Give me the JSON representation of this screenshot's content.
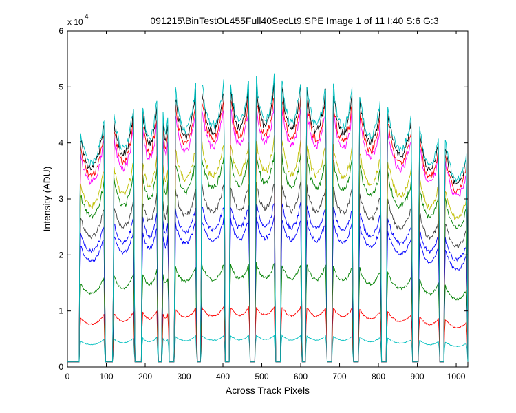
{
  "chart_data": {
    "type": "line",
    "title": "091215\\BinTestOL455Full40SecLt9.SPE  Image 1 of 11  I:40  S:6  G:3",
    "xlabel": "Across Track Pixels",
    "ylabel": "Intensity (ADU)",
    "y_multiplier": {
      "base": "x 10",
      "exponent": "4"
    },
    "xlim": [
      0,
      1030
    ],
    "ylim": [
      0,
      6
    ],
    "x_ticks": [
      0,
      100,
      200,
      300,
      400,
      500,
      600,
      700,
      800,
      900,
      1000
    ],
    "x_tick_labels": [
      "0",
      "100",
      "200",
      "300",
      "400",
      "500",
      "600",
      "700",
      "800",
      "900",
      "1000"
    ],
    "y_ticks": [
      0,
      1,
      2,
      3,
      4,
      5,
      6
    ],
    "y_tick_labels": [
      "0",
      "1",
      "2",
      "3",
      "4",
      "5",
      "6"
    ],
    "grid": false,
    "baseline": 0.09,
    "segments": [
      {
        "start": 30,
        "end": 97
      },
      {
        "start": 117,
        "end": 173
      },
      {
        "start": 190,
        "end": 233
      },
      {
        "start": 243,
        "end": 262
      },
      {
        "start": 275,
        "end": 333
      },
      {
        "start": 343,
        "end": 406
      },
      {
        "start": 416,
        "end": 470
      },
      {
        "start": 482,
        "end": 535
      },
      {
        "start": 548,
        "end": 603
      },
      {
        "start": 612,
        "end": 668
      },
      {
        "start": 680,
        "end": 735
      },
      {
        "start": 748,
        "end": 808
      },
      {
        "start": 820,
        "end": 888
      },
      {
        "start": 902,
        "end": 958
      },
      {
        "start": 968,
        "end": 1030
      }
    ],
    "series": [
      {
        "color": "#00bfbf",
        "scale": 0.11
      },
      {
        "color": "#ff0000",
        "scale": 0.21
      },
      {
        "color": "#008000",
        "scale": 0.36
      },
      {
        "color": "#0000ff",
        "scale": 0.52
      },
      {
        "color": "#0000ff",
        "scale": 0.57
      },
      {
        "color": "#404040",
        "scale": 0.64
      },
      {
        "color": "#008000",
        "scale": 0.74
      },
      {
        "color": "#bfbf00",
        "scale": 0.79
      },
      {
        "color": "#ff00ff",
        "scale": 0.91
      },
      {
        "color": "#ff0000",
        "scale": 0.94
      },
      {
        "color": "#000000",
        "scale": 0.975
      },
      {
        "color": "#00bfbf",
        "scale": 1.0
      }
    ],
    "peak_envelope_x": [
      30,
      100,
      200,
      300,
      400,
      500,
      600,
      700,
      800,
      900,
      1030
    ],
    "peak_envelope_y": [
      4.3,
      4.6,
      4.95,
      5.15,
      5.3,
      5.4,
      5.3,
      5.25,
      4.95,
      4.55,
      3.95
    ],
    "colors": {
      "cyan": "#00bfbf",
      "red": "#ff0000",
      "green": "#008000",
      "blue": "#0000ff",
      "gray": "#404040",
      "olive": "#bfbf00",
      "magenta": "#ff00ff",
      "black": "#000000"
    }
  }
}
